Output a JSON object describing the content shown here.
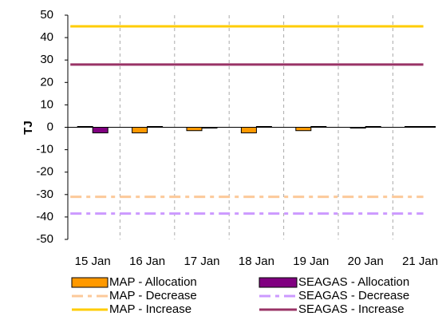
{
  "chart_data": {
    "type": "bar",
    "y_label": "TJ",
    "categories": [
      "15 Jan",
      "16 Jan",
      "17 Jan",
      "18 Jan",
      "19 Jan",
      "20 Jan",
      "21 Jan"
    ],
    "series": [
      {
        "name": "MAP - Allocation",
        "type": "bar",
        "color": "#ff9900",
        "values": [
          0,
          -2.5,
          -1.5,
          -2.5,
          -1.5,
          -0.3,
          0
        ]
      },
      {
        "name": "SEAGAS - Allocation",
        "type": "bar",
        "color": "#800080",
        "values": [
          -2.5,
          0.3,
          -0.3,
          0.3,
          0.3,
          0.3,
          0.3
        ]
      },
      {
        "name": "MAP - Decrease",
        "type": "line",
        "color": "#fcc99a",
        "dash": "14 6 5 6",
        "values": [
          -31,
          -31,
          -31,
          -31,
          -31,
          -31,
          -31
        ]
      },
      {
        "name": "SEAGAS - Decrease",
        "type": "line",
        "color": "#cc99ff",
        "dash": "14 6 5 6",
        "values": [
          -38.5,
          -38.5,
          -38.5,
          -38.5,
          -38.5,
          -38.5,
          -38.5
        ]
      },
      {
        "name": "MAP - Increase",
        "type": "line",
        "color": "#ffcc00",
        "values": [
          45,
          45,
          45,
          45,
          45,
          45,
          45
        ]
      },
      {
        "name": "SEAGAS - Increase",
        "type": "line",
        "color": "#993366",
        "values": [
          28,
          28,
          28,
          28,
          28,
          28,
          28
        ]
      }
    ],
    "ylim": [
      -50,
      50
    ],
    "yticks": [
      -50,
      -40,
      -30,
      -20,
      -10,
      0,
      10,
      20,
      30,
      40,
      50
    ],
    "grid": true
  }
}
